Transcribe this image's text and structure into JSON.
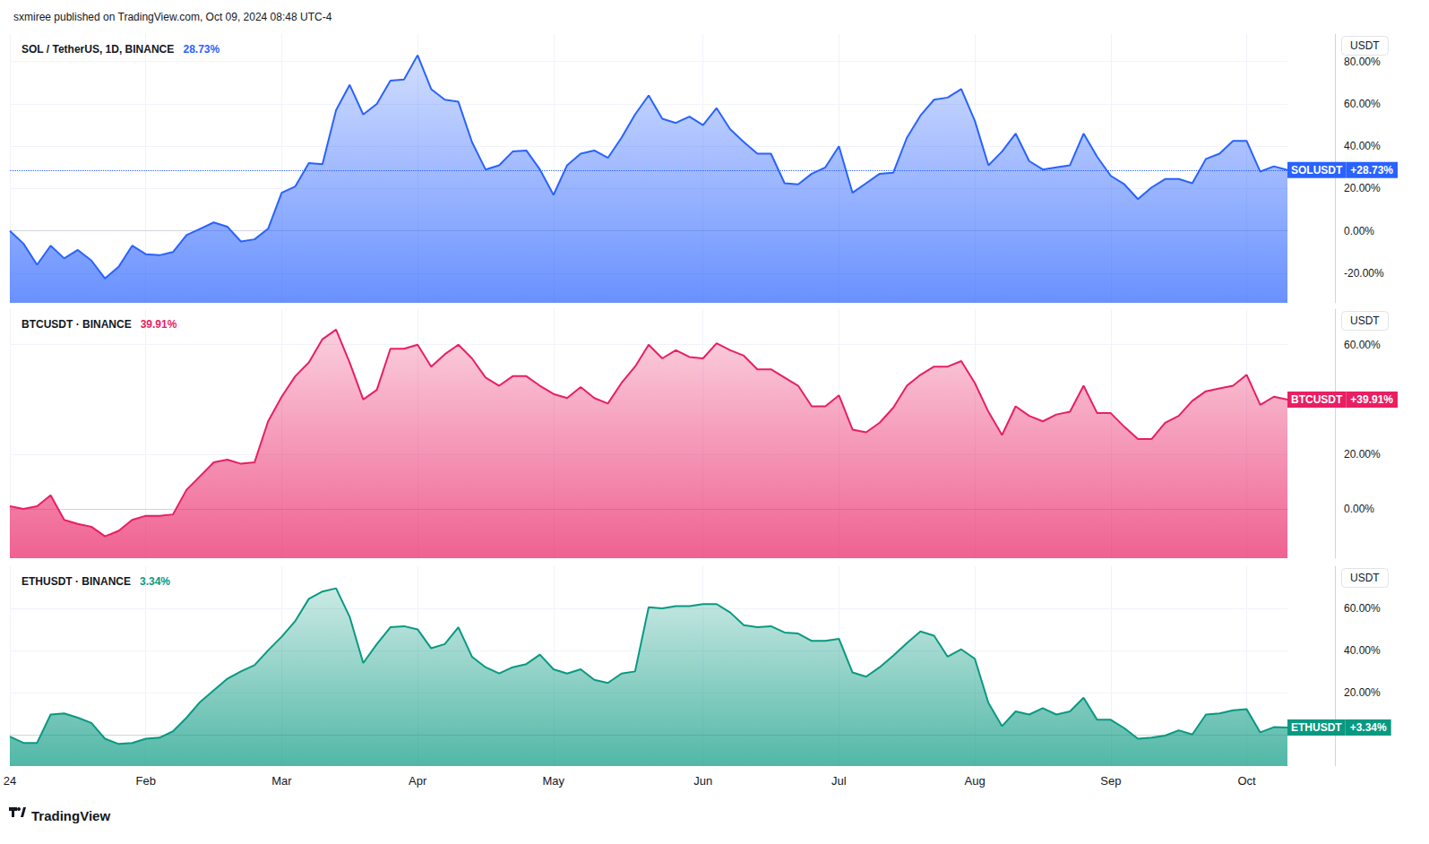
{
  "header": "sxmiree published on TradingView.com, Oct 09, 2024 08:48 UTC-4",
  "footer": "TradingView",
  "chart_data": [
    {
      "type": "area",
      "title": "SOL / TetherUS, 1D, BINANCE",
      "subtitle": "28.73%",
      "ylabel": "USDT",
      "categories": [
        "24",
        null,
        null,
        null,
        null,
        null,
        null,
        null,
        null,
        null,
        "Feb",
        null,
        null,
        null,
        null,
        null,
        null,
        null,
        null,
        null,
        "Mar",
        null,
        null,
        null,
        null,
        null,
        null,
        null,
        null,
        null,
        "Apr",
        null,
        null,
        null,
        null,
        null,
        null,
        null,
        null,
        null,
        "May",
        null,
        null,
        null,
        null,
        null,
        null,
        null,
        null,
        null,
        null,
        "Jun",
        null,
        null,
        null,
        null,
        null,
        null,
        null,
        null,
        null,
        "Jul",
        null,
        null,
        null,
        null,
        null,
        null,
        null,
        null,
        null,
        "Aug",
        null,
        null,
        null,
        null,
        null,
        null,
        null,
        null,
        null,
        "Sep",
        null,
        null,
        null,
        null,
        null,
        null,
        null,
        null,
        null,
        "Oct",
        null,
        null,
        null
      ],
      "series": [
        {
          "name": "SOLUSDT",
          "color": "#2962ff",
          "values": [
            0,
            -6,
            -16,
            -7,
            -13,
            -9,
            -14,
            -22.5,
            -17,
            -7,
            -11,
            -11.5,
            -10,
            -2,
            1,
            4,
            2,
            -5,
            -4,
            1,
            18,
            21,
            32,
            31.5,
            57,
            69,
            55,
            60,
            71,
            71.5,
            83,
            67,
            62,
            61,
            42,
            29,
            31,
            37.5,
            38,
            29,
            17,
            31,
            36.5,
            38,
            34.5,
            44,
            55,
            64,
            53,
            51,
            54,
            50,
            58,
            48,
            42,
            36.5,
            36.5,
            22.5,
            22,
            27,
            30,
            40,
            18,
            22.5,
            27,
            27.5,
            44,
            54.5,
            62,
            63,
            67,
            52,
            31,
            37.5,
            46,
            33,
            29,
            30,
            31,
            46,
            35,
            26,
            22,
            15,
            20.5,
            24.5,
            24.5,
            22.5,
            34,
            36.5,
            42.5,
            42.5,
            28,
            30.5,
            28.73
          ]
        }
      ],
      "annotations": [
        "+28.73%"
      ],
      "ylim": [
        -34,
        93
      ],
      "yticks": [
        {
          "value": -20,
          "label": "-20.00%"
        },
        {
          "value": 0,
          "label": "0.00%"
        },
        {
          "value": 20,
          "label": "20.00%"
        },
        {
          "value": 40,
          "label": "40.00%"
        },
        {
          "value": 60,
          "label": "60.00%"
        },
        {
          "value": 80,
          "label": "80.00%"
        }
      ],
      "grid": true,
      "tick_labels": "y"
    },
    {
      "type": "area",
      "title": "BTCUSDT · BINANCE",
      "subtitle": "39.91%",
      "ylabel": "USDT",
      "categories": [
        "24",
        null,
        null,
        null,
        null,
        null,
        null,
        null,
        null,
        null,
        "Feb",
        null,
        null,
        null,
        null,
        null,
        null,
        null,
        null,
        null,
        "Mar",
        null,
        null,
        null,
        null,
        null,
        null,
        null,
        null,
        null,
        "Apr",
        null,
        null,
        null,
        null,
        null,
        null,
        null,
        null,
        null,
        "May",
        null,
        null,
        null,
        null,
        null,
        null,
        null,
        null,
        null,
        null,
        "Jun",
        null,
        null,
        null,
        null,
        null,
        null,
        null,
        null,
        null,
        "Jul",
        null,
        null,
        null,
        null,
        null,
        null,
        null,
        null,
        null,
        "Aug",
        null,
        null,
        null,
        null,
        null,
        null,
        null,
        null,
        null,
        "Sep",
        null,
        null,
        null,
        null,
        null,
        null,
        null,
        null,
        null,
        "Oct",
        null,
        null,
        null
      ],
      "series": [
        {
          "name": "BTCUSDT",
          "color": "#e91e63",
          "values": [
            1,
            0,
            1,
            5,
            -4,
            -5.5,
            -6.5,
            -10,
            -8,
            -4,
            -2.5,
            -2.5,
            -2,
            7,
            12,
            17,
            18,
            16.5,
            17,
            32,
            41,
            48.5,
            53.5,
            62,
            65.5,
            53.5,
            40,
            43.5,
            58.5,
            58.5,
            60,
            52,
            56.5,
            60,
            55,
            48,
            45,
            48.5,
            48.5,
            45,
            42,
            40.5,
            44.5,
            40.5,
            38.5,
            46,
            52,
            60,
            55,
            58,
            55.5,
            55,
            60.5,
            58,
            56,
            51,
            51,
            48,
            45,
            37.5,
            37.5,
            41.5,
            29,
            28,
            31.5,
            37,
            45,
            49,
            52,
            52,
            54,
            46,
            35.5,
            27,
            37.5,
            34,
            32,
            34.5,
            35.5,
            45,
            35,
            35,
            30,
            25.5,
            25.5,
            31.5,
            34,
            39.5,
            43,
            44,
            45,
            49,
            38,
            41,
            39.91
          ]
        }
      ],
      "annotations": [
        "+39.91%"
      ],
      "ylim": [
        -18,
        73
      ],
      "yticks": [
        {
          "value": 0,
          "label": "0.00%"
        },
        {
          "value": 20,
          "label": "20.00%"
        },
        {
          "value": 60,
          "label": "60.00%"
        }
      ],
      "grid": true,
      "tick_labels": "y"
    },
    {
      "type": "area",
      "title": "ETHUSDT · BINANCE",
      "subtitle": "3.34%",
      "ylabel": "USDT",
      "categories": [
        "24",
        null,
        null,
        null,
        null,
        null,
        null,
        null,
        null,
        null,
        "Feb",
        null,
        null,
        null,
        null,
        null,
        null,
        null,
        null,
        null,
        "Mar",
        null,
        null,
        null,
        null,
        null,
        null,
        null,
        null,
        null,
        "Apr",
        null,
        null,
        null,
        null,
        null,
        null,
        null,
        null,
        null,
        "May",
        null,
        null,
        null,
        null,
        null,
        null,
        null,
        null,
        null,
        null,
        "Jun",
        null,
        null,
        null,
        null,
        null,
        null,
        null,
        null,
        null,
        "Jul",
        null,
        null,
        null,
        null,
        null,
        null,
        null,
        null,
        null,
        "Aug",
        null,
        null,
        null,
        null,
        null,
        null,
        null,
        null,
        null,
        "Sep",
        null,
        null,
        null,
        null,
        null,
        null,
        null,
        null,
        null,
        "Oct",
        null,
        null,
        null
      ],
      "series": [
        {
          "name": "ETHUSDT",
          "color": "#089981",
          "values": [
            -1,
            -4,
            -4,
            9.5,
            10,
            8,
            5.5,
            -2,
            -4.5,
            -4,
            -2,
            -1.5,
            1.5,
            8,
            15.5,
            21,
            26.5,
            30,
            33,
            40,
            46.5,
            54,
            64.5,
            68,
            69.5,
            56,
            34,
            43,
            51,
            51.5,
            50,
            41,
            43,
            51,
            37,
            32,
            29,
            32,
            33.5,
            38,
            31,
            29,
            31,
            26,
            24.5,
            29,
            30,
            60.5,
            60,
            61,
            61,
            62,
            62,
            58,
            52,
            51,
            51.5,
            48.5,
            48,
            44.5,
            44.5,
            45.5,
            29.5,
            27.5,
            32,
            37.5,
            43.5,
            49,
            47,
            37,
            40.5,
            36,
            15,
            4,
            11,
            9.5,
            12.5,
            9.5,
            11,
            17.5,
            7,
            7,
            3,
            -2,
            -1.5,
            -0.5,
            2,
            0,
            9.5,
            10,
            11.5,
            12,
            1,
            3.5,
            3.34
          ]
        }
      ],
      "annotations": [
        "+3.34%"
      ],
      "ylim": [
        -15,
        80
      ],
      "yticks": [
        {
          "value": 20,
          "label": "20.00%"
        },
        {
          "value": 40,
          "label": "40.00%"
        },
        {
          "value": 60,
          "label": "60.00%"
        }
      ],
      "grid": true,
      "tick_labels": true
    }
  ]
}
